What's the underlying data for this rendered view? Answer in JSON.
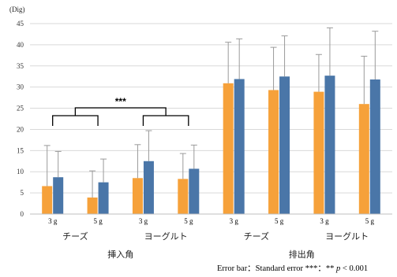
{
  "chart_data": {
    "type": "bar",
    "ylabel": "(Dig)",
    "ylim": [
      0,
      45
    ],
    "yticks": [
      0,
      5,
      10,
      15,
      20,
      25,
      30,
      35,
      40,
      45
    ],
    "grid": "horizontal",
    "colors": {
      "orange": "#F6A13A",
      "blue": "#4A76A8",
      "error_bar": "#9a9a9a"
    },
    "categories": [
      "3 g",
      "5 g",
      "3 g",
      "5 g",
      "3 g",
      "5 g",
      "3 g",
      "5 g"
    ],
    "series": [
      {
        "color": "#F6A13A",
        "values": [
          6.6,
          3.9,
          8.5,
          8.3,
          30.9,
          29.3,
          28.9,
          26.0
        ],
        "errors": [
          9.6,
          6.3,
          7.9,
          6.0,
          9.7,
          10.1,
          8.8,
          11.3
        ]
      },
      {
        "color": "#4A76A8",
        "values": [
          8.7,
          7.5,
          12.5,
          10.7,
          31.9,
          32.5,
          32.7,
          31.8
        ],
        "errors": [
          6.1,
          5.5,
          7.2,
          5.6,
          9.5,
          9.6,
          11.3,
          11.4
        ]
      }
    ],
    "subgroups": [
      "チーズ",
      "ヨーグルト",
      "チーズ",
      "ヨーグルト"
    ],
    "groups": [
      "挿入角",
      "排出角"
    ],
    "significance": {
      "label": "***",
      "between": "subgroups 0 and 1"
    }
  },
  "footnote": {
    "prefix": "Error bar：Standard error ***：** ",
    "p": "p",
    "suffix": " < 0.001"
  }
}
